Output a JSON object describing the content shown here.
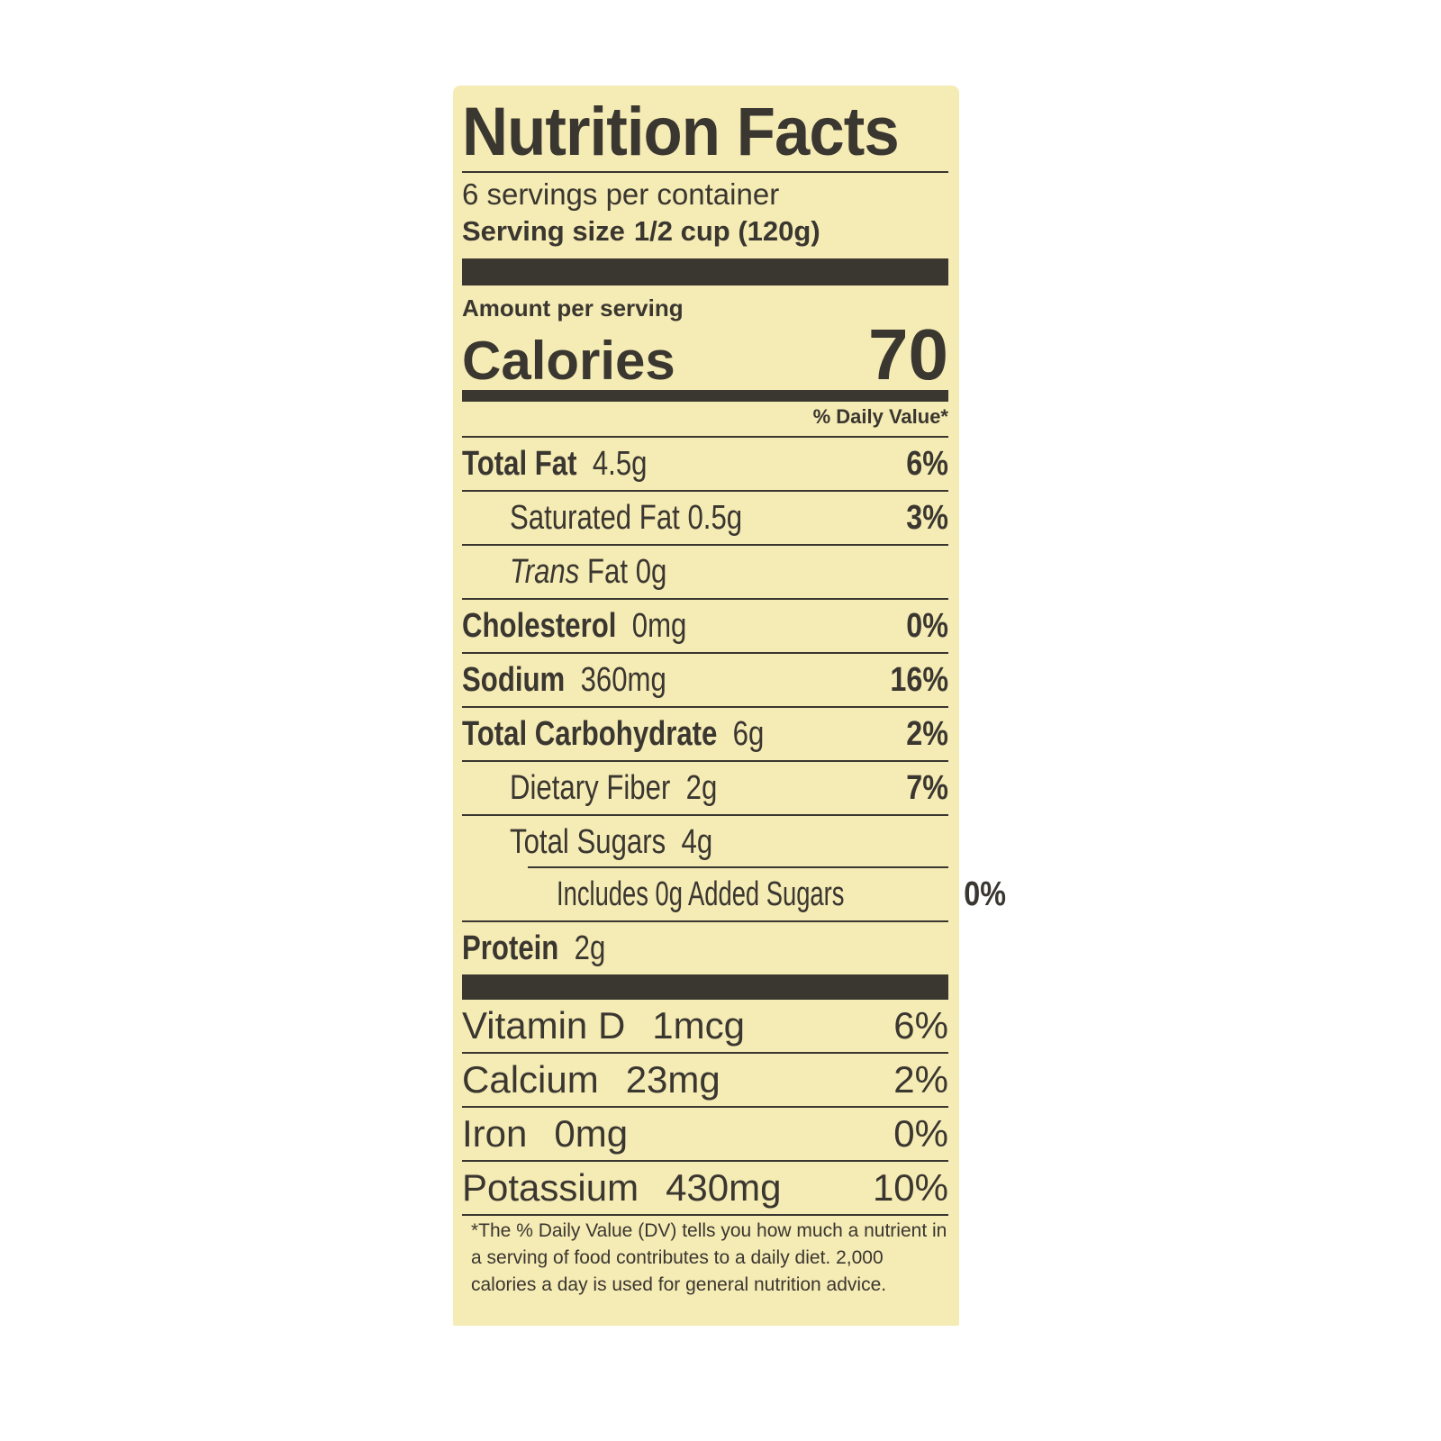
{
  "title": "Nutrition Facts",
  "servings_per_container": "6 servings per container",
  "serving_size": {
    "label": "Serving size",
    "value": "1/2 cup (120g)"
  },
  "amount_per_serving": "Amount per serving",
  "calories": {
    "label": "Calories",
    "value": "70"
  },
  "daily_value_header": "% Daily Value*",
  "nutrients": [
    {
      "name": "Total Fat",
      "amount": "4.5g",
      "dv": "6%"
    },
    {
      "name": "Saturated Fat",
      "amount": "0.5g",
      "dv": "3%"
    },
    {
      "name_italic": "Trans",
      "name": "Fat",
      "amount": "0g",
      "dv": ""
    },
    {
      "name": "Cholesterol",
      "amount": "0mg",
      "dv": "0%"
    },
    {
      "name": "Sodium",
      "amount": "360mg",
      "dv": "16%"
    },
    {
      "name": "Total Carbohydrate",
      "amount": "6g",
      "dv": "2%"
    },
    {
      "name": "Dietary Fiber",
      "amount": "2g",
      "dv": "7%"
    },
    {
      "name": "Total Sugars",
      "amount": "4g",
      "dv": ""
    },
    {
      "name": "Includes 0g Added Sugars",
      "amount": "",
      "dv": "0%"
    },
    {
      "name": "Protein",
      "amount": "2g",
      "dv": ""
    }
  ],
  "vitamins": [
    {
      "name": "Vitamin D",
      "amount": "1mcg",
      "dv": "6%"
    },
    {
      "name": "Calcium",
      "amount": "23mg",
      "dv": "2%"
    },
    {
      "name": "Iron",
      "amount": "0mg",
      "dv": "0%"
    },
    {
      "name": "Potassium",
      "amount": "430mg",
      "dv": "10%"
    }
  ],
  "footnote": "*The % Daily Value (DV) tells you how much a nutrient in a serving of food contributes to a daily diet. 2,000 calories a day is used for general nutrition advice.",
  "colors": {
    "background": "#f5ebb4",
    "ink": "#3a3630"
  }
}
